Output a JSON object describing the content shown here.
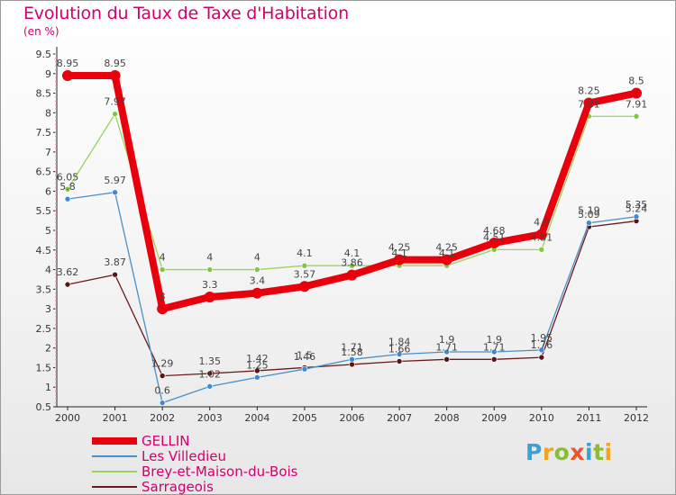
{
  "title": "Evolution du Taux de Taxe d'Habitation",
  "subtitle": "(en %)",
  "logo": {
    "text": "Proxiti",
    "letters": [
      {
        "ch": "P",
        "color": "#3aa2d6"
      },
      {
        "ch": "r",
        "color": "#f0a521"
      },
      {
        "ch": "o",
        "color": "#8cbd3a"
      },
      {
        "ch": "x",
        "color": "#e8542c"
      },
      {
        "ch": "i",
        "color": "#3aa2d6"
      },
      {
        "ch": "t",
        "color": "#8cbd3a"
      },
      {
        "ch": "i",
        "color": "#f0a521"
      }
    ]
  },
  "chart_data": {
    "type": "line",
    "title": "Evolution du Taux de Taxe d'Habitation",
    "ylabel": "(en %)",
    "xlabel": "",
    "x": [
      "2000",
      "2001",
      "2002",
      "2003",
      "2004",
      "2005",
      "2006",
      "2007",
      "2008",
      "2009",
      "2010",
      "2011",
      "2012"
    ],
    "ylim": [
      0.5,
      9.5
    ],
    "yticks": [
      "0.5",
      "1",
      "1.5",
      "2",
      "2.5",
      "3",
      "3.5",
      "4",
      "4.5",
      "5",
      "5.5",
      "6",
      "6.5",
      "7",
      "7.5",
      "8",
      "8.5",
      "9",
      "9.5"
    ],
    "grid": false,
    "legend_placement": "bottom-left",
    "series": [
      {
        "name": "GELLIN",
        "color": "#e8000c",
        "highlight": true,
        "values": [
          8.95,
          8.95,
          3,
          3.3,
          3.4,
          3.57,
          3.86,
          4.25,
          4.25,
          4.68,
          4.9,
          8.25,
          8.5
        ],
        "labels": [
          "8.95",
          "8.95",
          "3",
          "3.3",
          "3.4",
          "3.57",
          "3.86",
          "4.25",
          "4.25",
          "4.68",
          "4.9",
          "8.25",
          "8.5"
        ]
      },
      {
        "name": "Les Villedieu",
        "color": "#4a90c8",
        "dot": "#3a8ad6",
        "values": [
          5.8,
          5.97,
          0.6,
          1.02,
          1.25,
          1.46,
          1.71,
          1.84,
          1.9,
          1.9,
          1.95,
          5.19,
          5.35
        ],
        "labels": [
          "5.8",
          "5.97",
          "0.6",
          "1.02",
          "1.25",
          "1.46",
          "1.71",
          "1.84",
          "1.9",
          "1.9",
          "1.95",
          "5.19",
          "5.35"
        ]
      },
      {
        "name": "Brey-et-Maison-du-Bois",
        "color": "#9ad45a",
        "dot": "#7ec83c",
        "values": [
          6.05,
          7.97,
          4,
          4,
          4,
          4.1,
          4.1,
          4.1,
          4.1,
          4.51,
          4.51,
          7.91,
          7.91
        ],
        "labels": [
          "6.05",
          "7.97",
          "4",
          "4",
          "4",
          "4.1",
          "4.1",
          "4.1",
          "4.1",
          "4.51",
          "4.51",
          "7.91",
          "7.91"
        ]
      },
      {
        "name": "Sarrageois",
        "color": "#6b1a1a",
        "dot": "#5a1414",
        "values": [
          3.62,
          3.87,
          1.29,
          1.35,
          1.42,
          1.5,
          1.58,
          1.66,
          1.71,
          1.71,
          1.76,
          5.09,
          5.24
        ],
        "labels": [
          "3.62",
          "3.87",
          "1.29",
          "1.35",
          "1.42",
          "1.5",
          "1.58",
          "1.66",
          "1.71",
          "1.71",
          "1.76",
          "5.09",
          "5.24"
        ]
      }
    ]
  }
}
